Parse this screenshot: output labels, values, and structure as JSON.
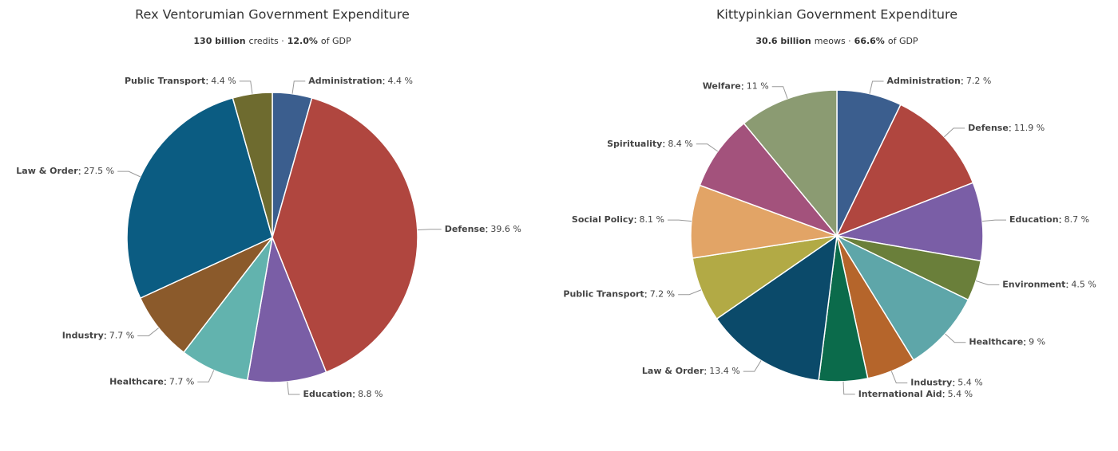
{
  "chart_data": [
    {
      "type": "pie",
      "title": "Rex Ventorumian Government Expenditure",
      "subtitle": [
        {
          "text": "130 billion",
          "bold": true
        },
        {
          "text": "credits ·",
          "bold": false
        },
        {
          "text": "12.0%",
          "bold": true
        },
        {
          "text": "of GDP",
          "bold": false
        }
      ],
      "categories": [
        "Administration",
        "Defense",
        "Education",
        "Healthcare",
        "Industry",
        "Law & Order",
        "Public Transport"
      ],
      "values": [
        4.4,
        39.6,
        8.8,
        7.7,
        7.7,
        27.5,
        4.4
      ],
      "value_labels": [
        "4.4 %",
        "39.6 %",
        "8.8 %",
        "7.7 %",
        "7.7 %",
        "27.5 %",
        "4.4 %"
      ],
      "colors": [
        "#3b5e8e",
        "#b0463f",
        "#7a5ea6",
        "#62b3ae",
        "#8b5a2b",
        "#0b5c82",
        "#6e6b2f"
      ]
    },
    {
      "type": "pie",
      "title": "Kittypinkian Government Expenditure",
      "subtitle": [
        {
          "text": "30.6 billion",
          "bold": true
        },
        {
          "text": "meows ·",
          "bold": false
        },
        {
          "text": "66.6%",
          "bold": true
        },
        {
          "text": "of GDP",
          "bold": false
        }
      ],
      "categories": [
        "Administration",
        "Defense",
        "Education",
        "Environment",
        "Healthcare",
        "Industry",
        "International Aid",
        "Law & Order",
        "Public Transport",
        "Social Policy",
        "Spirituality",
        "Welfare"
      ],
      "values": [
        7.2,
        11.9,
        8.7,
        4.5,
        9,
        5.4,
        5.4,
        13.4,
        7.2,
        8.1,
        8.4,
        11
      ],
      "value_labels": [
        "7.2 %",
        "11.9 %",
        "8.7 %",
        "4.5 %",
        "9 %",
        "5.4 %",
        "5.4 %",
        "13.4 %",
        "7.2 %",
        "8.1 %",
        "8.4 %",
        "11 %"
      ],
      "colors": [
        "#3b5e8e",
        "#b0463f",
        "#7a5ea6",
        "#6a7f3a",
        "#5ea6a9",
        "#b5652b",
        "#0b6b4b",
        "#0b4a6a",
        "#b2aa45",
        "#e2a466",
        "#a3527c",
        "#8b9b72"
      ]
    }
  ]
}
